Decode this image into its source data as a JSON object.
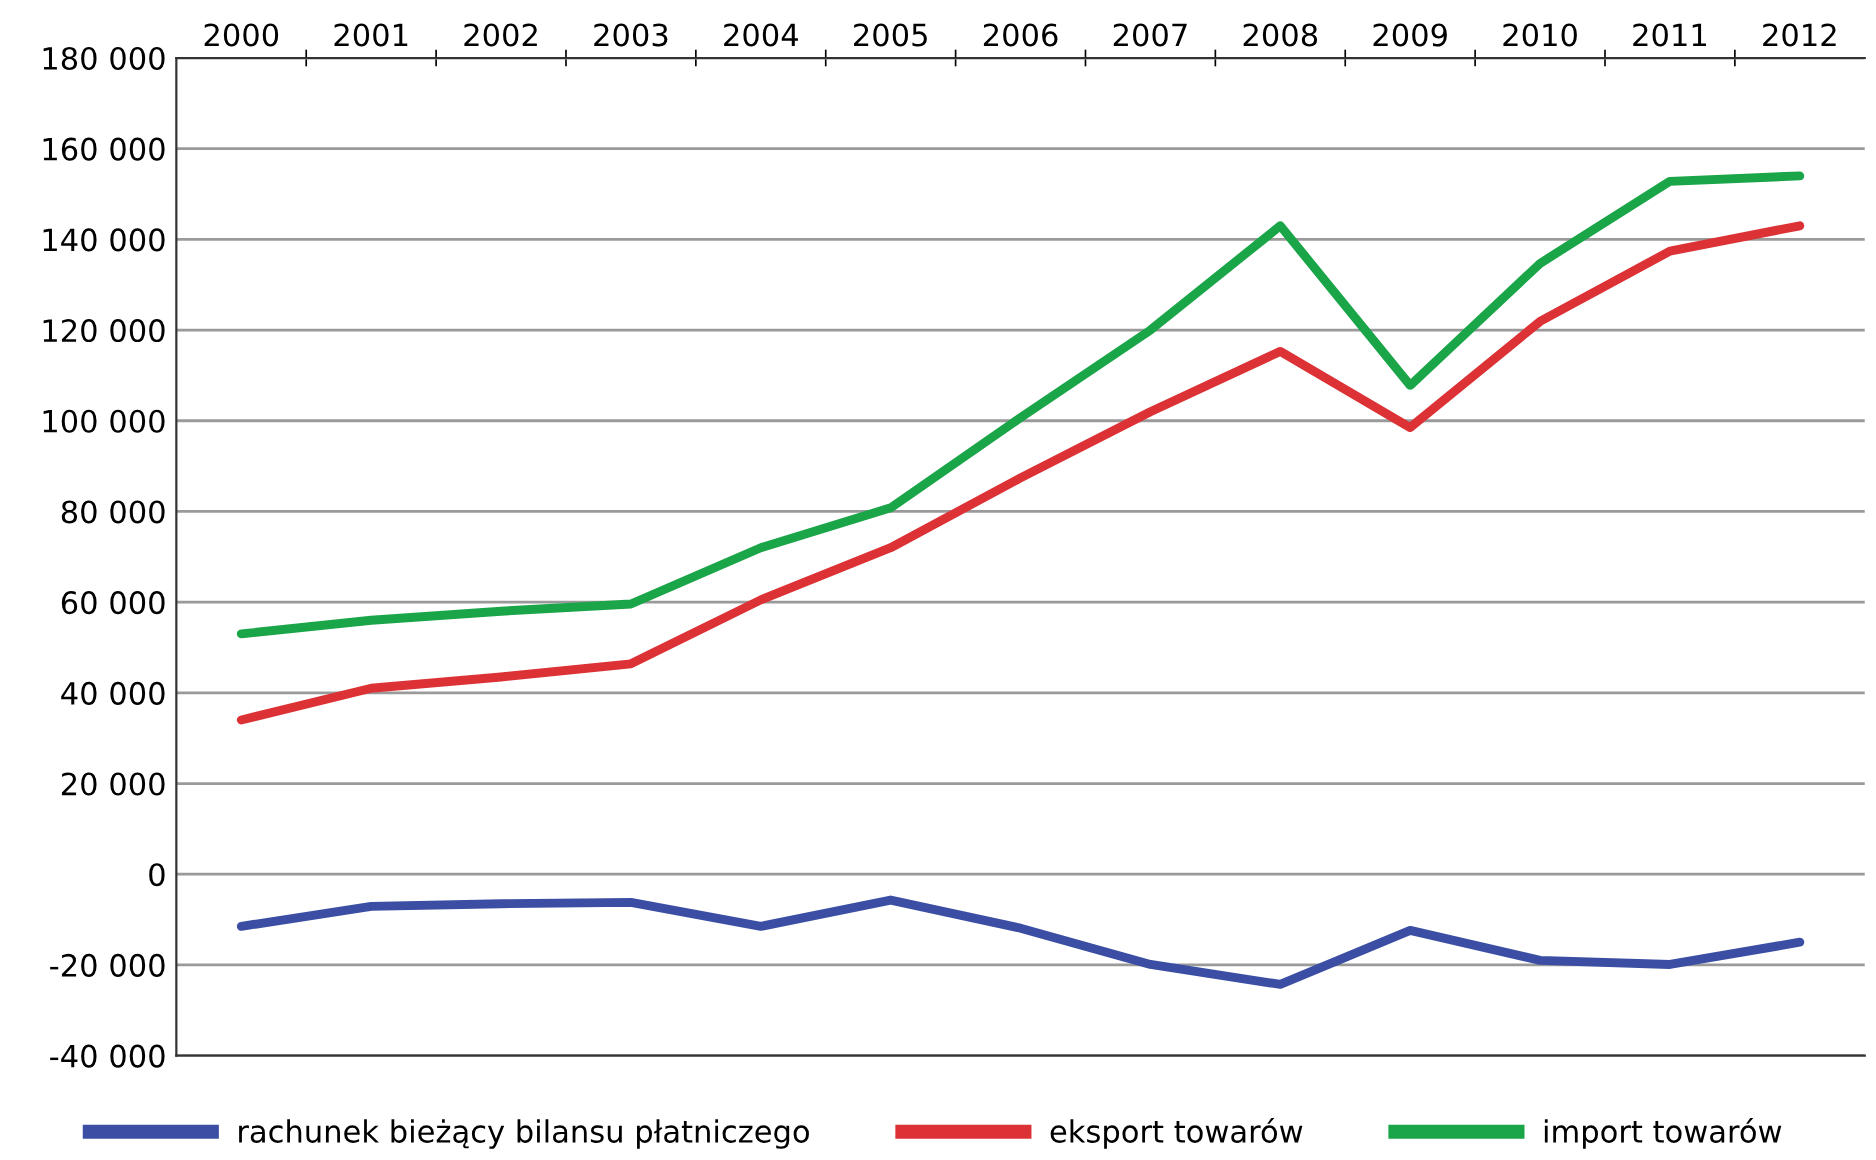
{
  "chart_data": {
    "type": "line",
    "categories": [
      "2000",
      "2001",
      "2002",
      "2003",
      "2004",
      "2005",
      "2006",
      "2007",
      "2008",
      "2009",
      "2010",
      "2011",
      "2012"
    ],
    "series": [
      {
        "name": "rachunek bieżący bilansu płatniczego",
        "color": "#3b4ea3",
        "values": [
          -11500,
          -7100,
          -6500,
          -6200,
          -11500,
          -5700,
          -11900,
          -19900,
          -24300,
          -12400,
          -19000,
          -19900,
          -15000
        ]
      },
      {
        "name": "eksport towarów",
        "color": "#dc3236",
        "values": [
          34000,
          41000,
          43500,
          46400,
          60500,
          72000,
          87400,
          102000,
          115300,
          98500,
          121900,
          137400,
          143000
        ]
      },
      {
        "name": "import towarów",
        "color": "#1aa548",
        "values": [
          53000,
          56000,
          58000,
          59600,
          72000,
          80800,
          100700,
          120000,
          143000,
          107800,
          134700,
          152800,
          154000
        ]
      }
    ],
    "ylim": [
      -40000,
      180000
    ],
    "yticks": [
      {
        "value": -40000,
        "label": "-40 000"
      },
      {
        "value": -20000,
        "label": "-20 000"
      },
      0,
      {
        "value": 20000,
        "label": "20 000"
      },
      {
        "value": 40000,
        "label": "40 000"
      },
      {
        "value": 60000,
        "label": "60 000"
      },
      {
        "value": 80000,
        "label": "80 000"
      },
      {
        "value": 100000,
        "label": "100 000"
      },
      {
        "value": 120000,
        "label": "120 000"
      },
      {
        "value": 140000,
        "label": "140 000"
      },
      {
        "value": 160000,
        "label": "160 000"
      },
      {
        "value": 180000,
        "label": "180 000"
      }
    ],
    "grid": "y",
    "legend": "bottom",
    "marker": "none",
    "line_style": "solid"
  }
}
